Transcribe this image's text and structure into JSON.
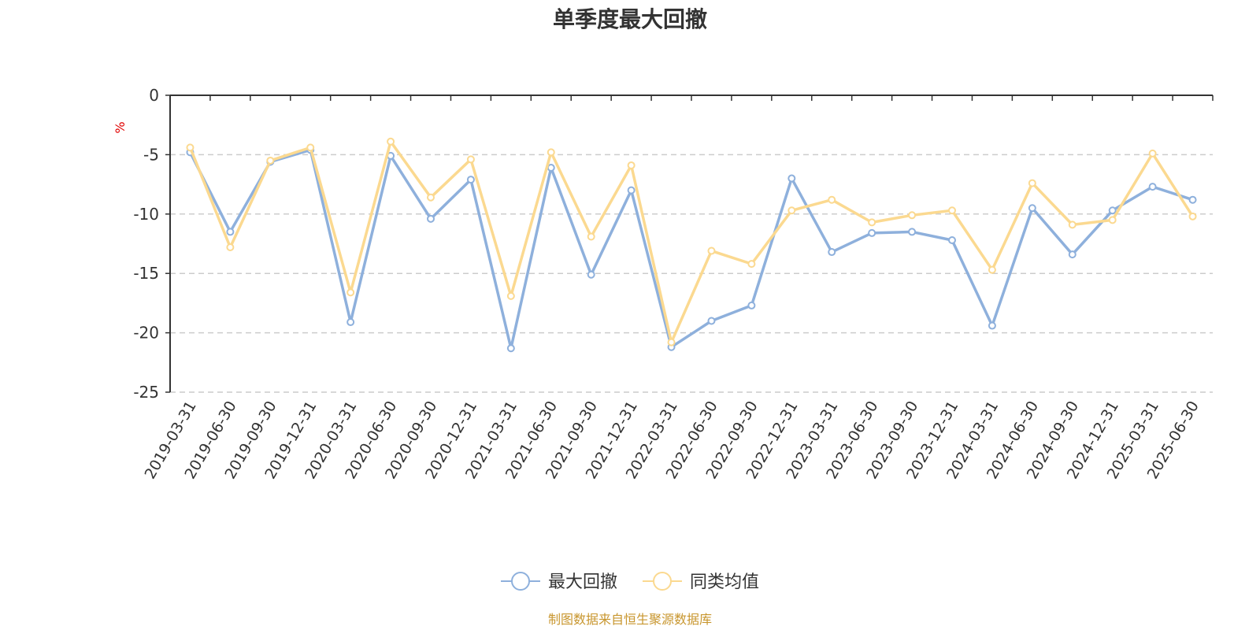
{
  "chart_data": {
    "type": "line",
    "title": "单季度最大回撤",
    "ylabel": "%",
    "ylim": [
      -25,
      0
    ],
    "yticks": [
      0,
      -5,
      -10,
      -15,
      -20,
      -25
    ],
    "grid": true,
    "legend_position": "bottom",
    "categories": [
      "2019-03-31",
      "2019-06-30",
      "2019-09-30",
      "2019-12-31",
      "2020-03-31",
      "2020-06-30",
      "2020-09-30",
      "2020-12-31",
      "2021-03-31",
      "2021-06-30",
      "2021-09-30",
      "2021-12-31",
      "2022-03-31",
      "2022-06-30",
      "2022-09-30",
      "2022-12-31",
      "2023-03-31",
      "2023-06-30",
      "2023-09-30",
      "2023-12-31",
      "2024-03-31",
      "2024-06-30",
      "2024-09-30",
      "2024-12-31",
      "2025-03-31",
      "2025-06-30"
    ],
    "series": [
      {
        "name": "最大回撤",
        "color": "#8eb0dc",
        "values": [
          -4.8,
          -11.5,
          -5.6,
          -4.6,
          -19.1,
          -5.1,
          -10.4,
          -7.1,
          -21.3,
          -6.1,
          -15.1,
          -8.0,
          -21.2,
          -19.0,
          -17.7,
          -7.0,
          -13.2,
          -11.6,
          -11.5,
          -12.2,
          -19.4,
          -9.5,
          -13.4,
          -9.7,
          -7.7,
          -8.8
        ]
      },
      {
        "name": "同类均值",
        "color": "#fbd990",
        "values": [
          -4.4,
          -12.8,
          -5.5,
          -4.4,
          -16.6,
          -3.9,
          -8.6,
          -5.4,
          -16.9,
          -4.8,
          -11.9,
          -5.9,
          -20.8,
          -13.1,
          -14.2,
          -9.7,
          -8.8,
          -10.7,
          -10.1,
          -9.7,
          -14.7,
          -7.4,
          -10.9,
          -10.5,
          -4.9,
          -10.2
        ]
      }
    ]
  },
  "source_text": "制图数据来自恒生聚源数据库"
}
